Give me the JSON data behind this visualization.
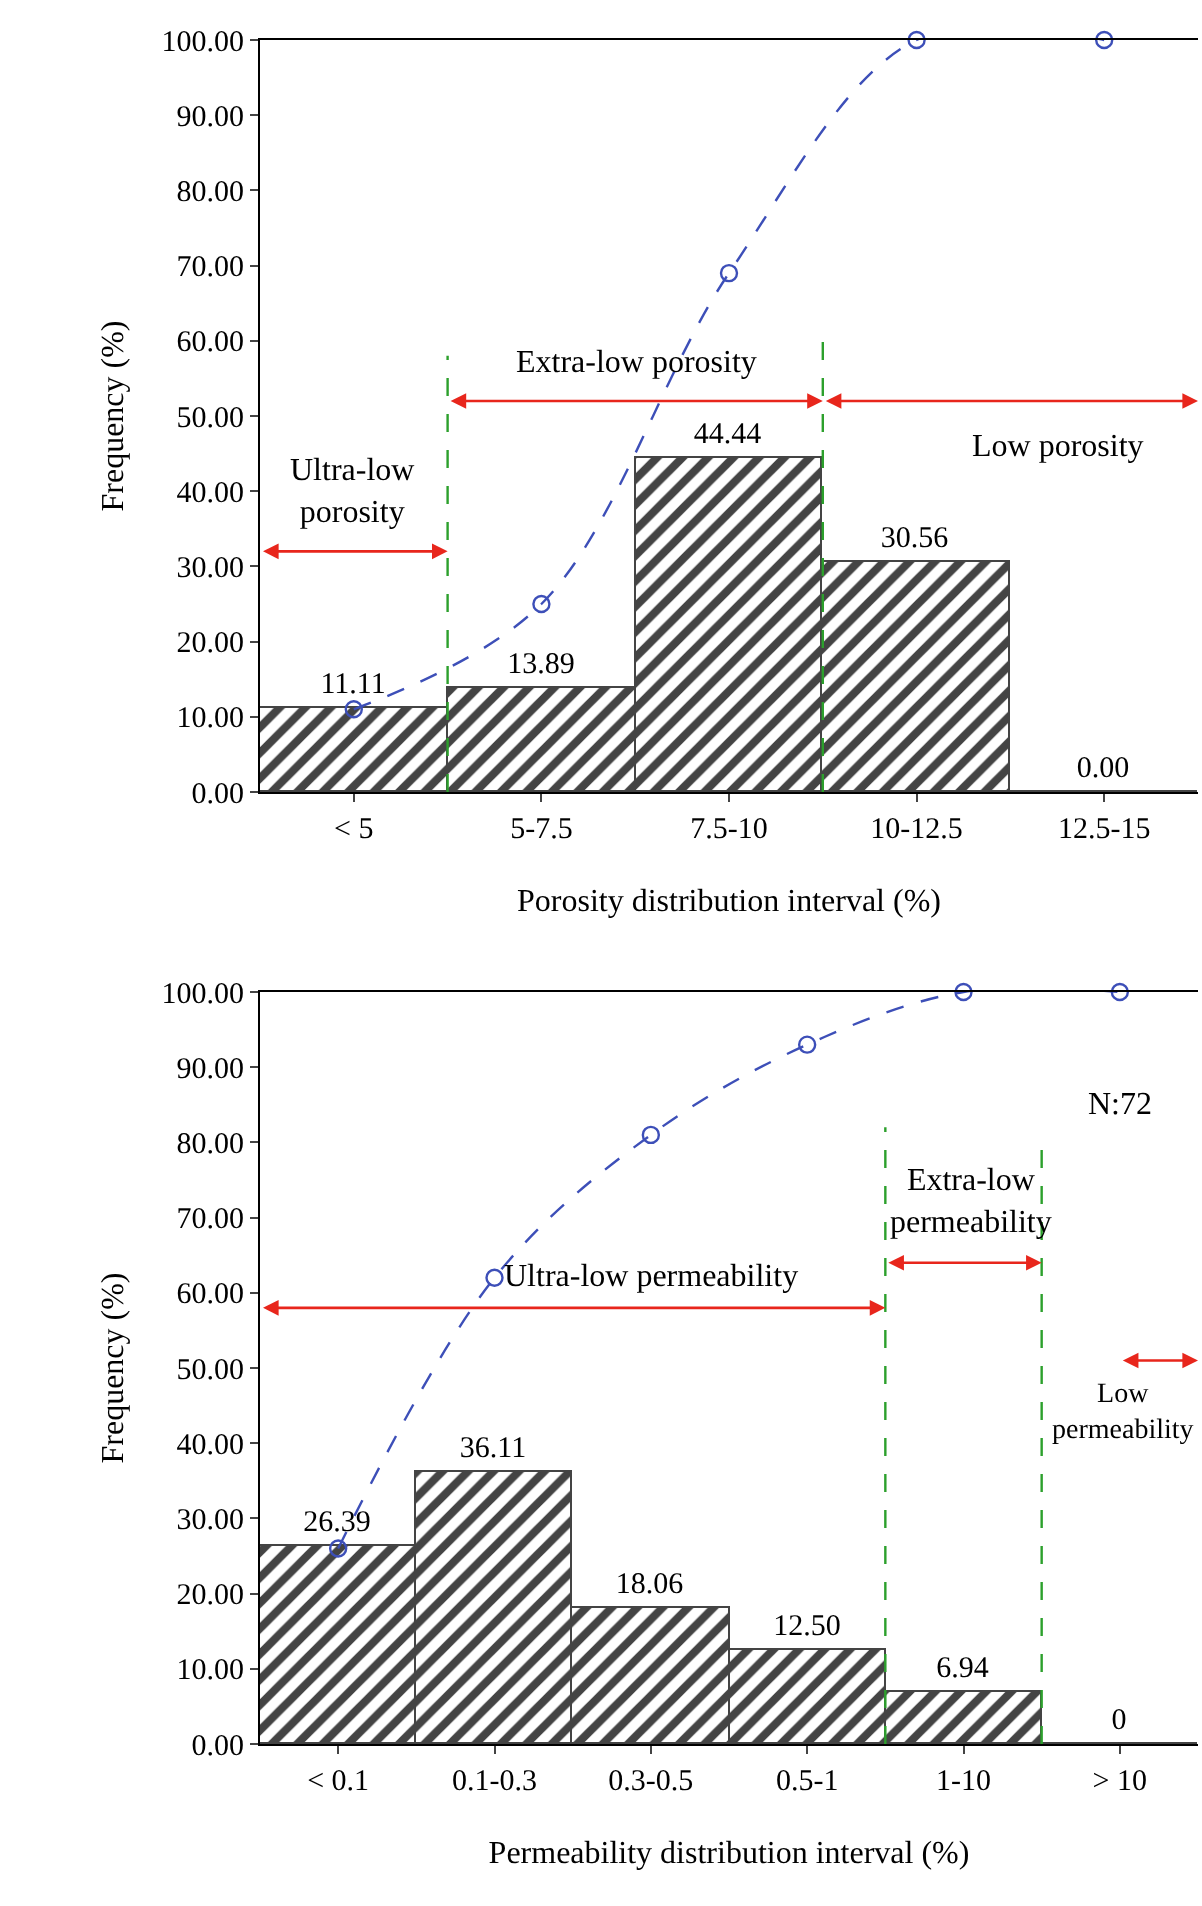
{
  "chart_data": [
    {
      "type": "bar",
      "xlabel": "Porosity distribution interval (%)",
      "ylabel": "Frequency (%)",
      "categories": [
        "< 5",
        "5-7.5",
        "7.5-10",
        "10-12.5",
        "12.5-15"
      ],
      "series": [
        {
          "color": "#444444",
          "values": [
            11.11,
            13.89,
            44.44,
            30.56,
            0
          ],
          "value_labels": [
            "11.11",
            "13.89",
            "44.44",
            "30.56",
            "0.00"
          ]
        },
        {
          "type": "line",
          "color": "#3d4fb8",
          "values": [
            11,
            25,
            69,
            100,
            100
          ]
        }
      ],
      "ylim": [
        0,
        100
      ],
      "yticks": [
        {
          "value": 0,
          "label": "0.00"
        },
        {
          "value": 10,
          "label": "10.00"
        },
        {
          "value": 20,
          "label": "20.00"
        },
        {
          "value": 30,
          "label": "30.00"
        },
        {
          "value": 40,
          "label": "40.00"
        },
        {
          "value": 50,
          "label": "50.00"
        },
        {
          "value": 60,
          "label": "60.00"
        },
        {
          "value": 70,
          "label": "70.00"
        },
        {
          "value": 80,
          "label": "80.00"
        },
        {
          "value": 90,
          "label": "90.00"
        },
        {
          "value": 100,
          "label": "100.00"
        }
      ],
      "annotations": [
        "Ultra-low\nporosity",
        "Extra-low porosity",
        "Low porosity"
      ],
      "marker": "circle",
      "line_style": "dashed",
      "grid": false
    },
    {
      "type": "bar",
      "xlabel": "Permeability distribution interval (%)",
      "ylabel": "Frequency (%)",
      "categories": [
        "< 0.1",
        "0.1-0.3",
        "0.3-0.5",
        "0.5-1",
        "1-10",
        "> 10"
      ],
      "series": [
        {
          "color": "#444444",
          "values": [
            26.39,
            36.11,
            18.06,
            12.5,
            6.94,
            0
          ],
          "value_labels": [
            "26.39",
            "36.11",
            "18.06",
            "12.50",
            "6.94",
            "0"
          ]
        },
        {
          "type": "line",
          "color": "#3d4fb8",
          "values": [
            26,
            62,
            81,
            93,
            100,
            100
          ]
        }
      ],
      "ylim": [
        0,
        100
      ],
      "yticks": [
        {
          "value": 0,
          "label": "0.00"
        },
        {
          "value": 10,
          "label": "10.00"
        },
        {
          "value": 20,
          "label": "20.00"
        },
        {
          "value": 30,
          "label": "30.00"
        },
        {
          "value": 40,
          "label": "40.00"
        },
        {
          "value": 50,
          "label": "50.00"
        },
        {
          "value": 60,
          "label": "60.00"
        },
        {
          "value": 70,
          "label": "70.00"
        },
        {
          "value": 80,
          "label": "80.00"
        },
        {
          "value": 90,
          "label": "90.00"
        },
        {
          "value": 100,
          "label": "100.00"
        }
      ],
      "annotations": [
        "Ultra-low permeability",
        "Extra-low\npermeability",
        "Low\npermeability",
        "N:72"
      ],
      "marker": "circle",
      "line_style": "dashed",
      "grid": false
    }
  ]
}
